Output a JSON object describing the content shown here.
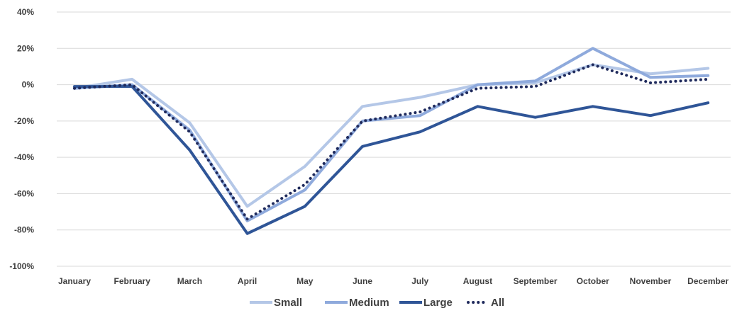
{
  "chart_data": {
    "type": "line",
    "categories": [
      "January",
      "February",
      "March",
      "April",
      "May",
      "June",
      "July",
      "August",
      "September",
      "October",
      "November",
      "December"
    ],
    "ylim": [
      -100,
      40
    ],
    "y_ticks": [
      40,
      20,
      0,
      -20,
      -40,
      -60,
      -80,
      -100
    ],
    "y_tick_labels": [
      "40%",
      "20%",
      "0%",
      "-20%",
      "-40%",
      "-60%",
      "-80%",
      "-100%"
    ],
    "grid": true,
    "legend_position": "bottom",
    "series": [
      {
        "name": "Small",
        "color": "#b4c7e7",
        "style": "solid",
        "values": [
          -2,
          3,
          -21,
          -67,
          -45,
          -12,
          -7,
          0,
          1,
          11,
          6,
          9
        ]
      },
      {
        "name": "Medium",
        "color": "#8faadc",
        "style": "solid",
        "values": [
          -2,
          0,
          -25,
          -75,
          -58,
          -20,
          -17,
          0,
          2,
          20,
          4,
          5
        ]
      },
      {
        "name": "Large",
        "color": "#2f5597",
        "style": "solid",
        "values": [
          -1,
          -1,
          -36,
          -82,
          -67,
          -34,
          -26,
          -12,
          -18,
          -12,
          -17,
          -10
        ]
      },
      {
        "name": "All",
        "color": "#1f2a5c",
        "style": "dotted",
        "values": [
          -2,
          0,
          -26,
          -74,
          -55,
          -20,
          -15,
          -2,
          -1,
          11,
          1,
          3
        ]
      }
    ]
  }
}
